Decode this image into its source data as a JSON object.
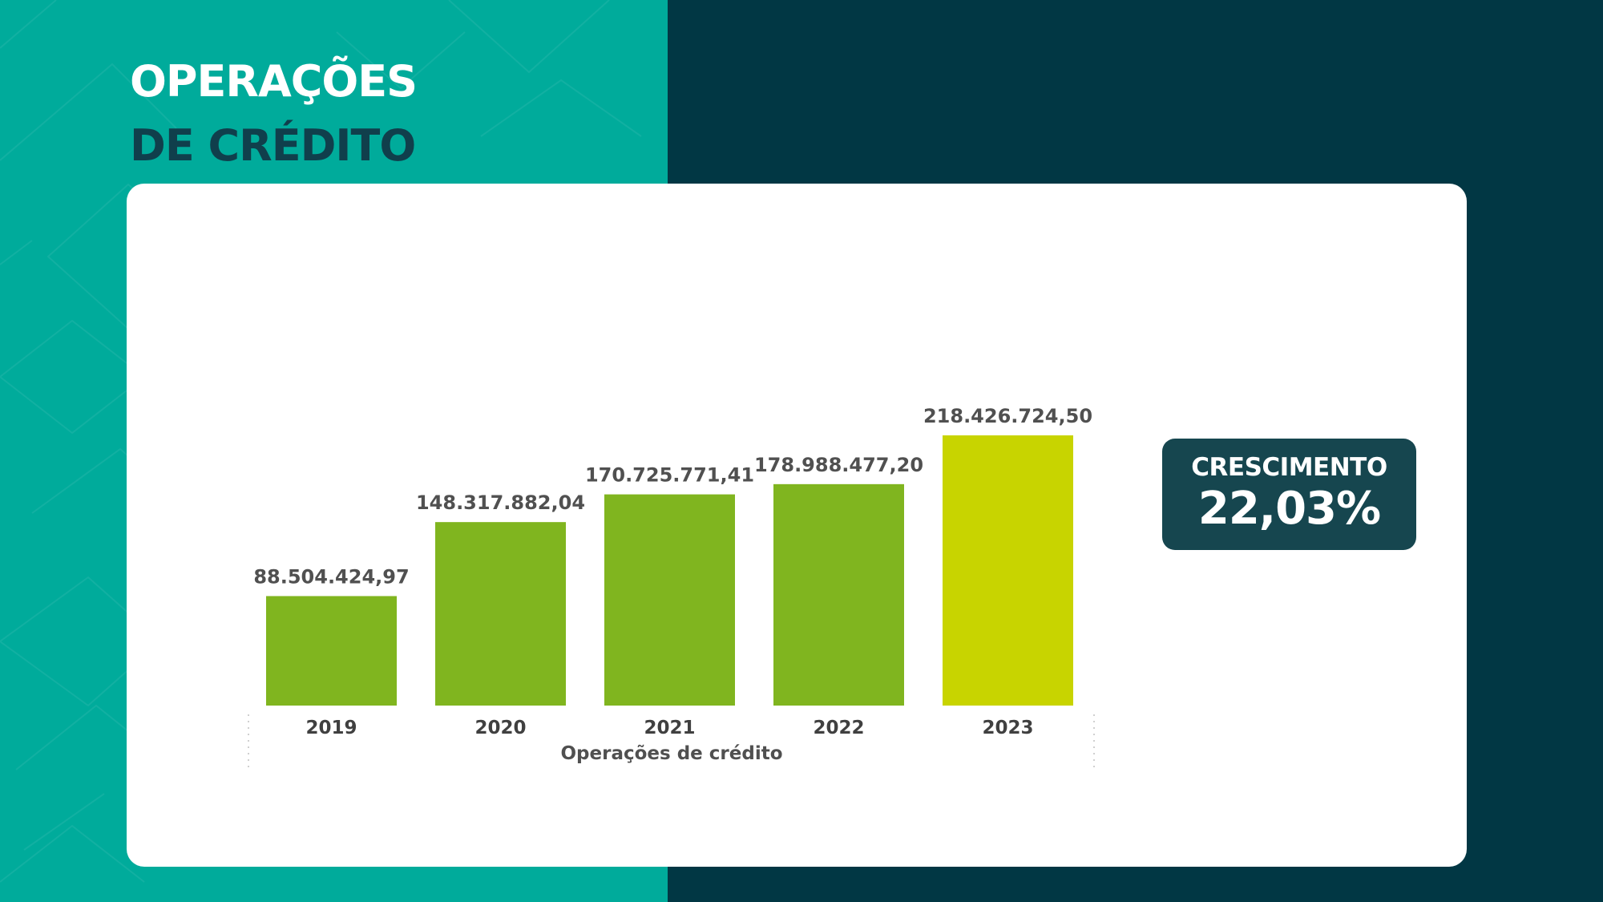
{
  "header": {
    "title_line1": "OPERAÇÕES",
    "title_line2": "DE CRÉDITO"
  },
  "colors": {
    "left_panel": "#00ab9b",
    "right_panel": "#013744",
    "bar": "#80b51f",
    "bar_highlight": "#c8d400",
    "badge": "#16464f",
    "title_dark": "#103f4c"
  },
  "chart_data": {
    "type": "bar",
    "categories": [
      "2019",
      "2020",
      "2021",
      "2022",
      "2023"
    ],
    "values": [
      88504424.97,
      148317882.04,
      170725771.41,
      178988477.2,
      218426724.5
    ],
    "data_labels": [
      "88.504.424,97",
      "148.317.882,04",
      "170.725.771,41",
      "178.988.477,20",
      "218.426.724,50"
    ],
    "highlight_category": "2023",
    "xlabel": "Operações de crédito",
    "ylabel": "",
    "ylim": [
      0,
      218426724.5
    ],
    "grid": false,
    "legend": "none"
  },
  "badge": {
    "label": "CRESCIMENTO",
    "value": "22,03%"
  }
}
